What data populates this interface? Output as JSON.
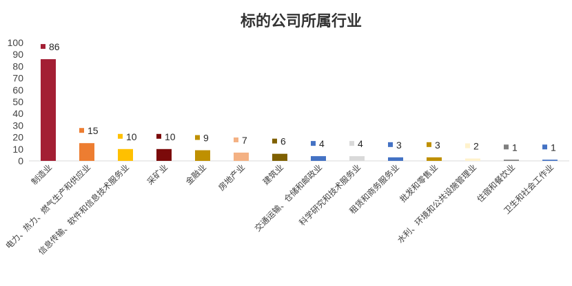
{
  "chart_data": {
    "type": "bar",
    "title": "标的公司所属行业",
    "xlabel": "",
    "ylabel": "",
    "ylim": [
      0,
      100
    ],
    "yticks": [
      0,
      10,
      20,
      30,
      40,
      50,
      60,
      70,
      80,
      90,
      100
    ],
    "grid": false,
    "legend": "none",
    "categories": [
      "制造业",
      "电力、热力、燃气生产和供应业",
      "信息传输、软件和信息技术服务业",
      "采矿业",
      "金融业",
      "房地产业",
      "建筑业",
      "交通运输、仓储和邮政业",
      "科学研究和技术服务业",
      "租赁和商务服务业",
      "批发和零售业",
      "水利、环境和公共设施管理业",
      "住宿和餐饮业",
      "卫生和社会工作业"
    ],
    "values": [
      86,
      15,
      10,
      10,
      9,
      7,
      6,
      4,
      4,
      3,
      3,
      2,
      1,
      1
    ],
    "colors": [
      "#A31F34",
      "#ED7D31",
      "#FFC000",
      "#7B0A0A",
      "#BF9000",
      "#F4B183",
      "#7F6000",
      "#4472C4",
      "#D9D9D9",
      "#4472C4",
      "#BF9000",
      "#FFF2CC",
      "#7F7F7F",
      "#4472C4"
    ]
  }
}
